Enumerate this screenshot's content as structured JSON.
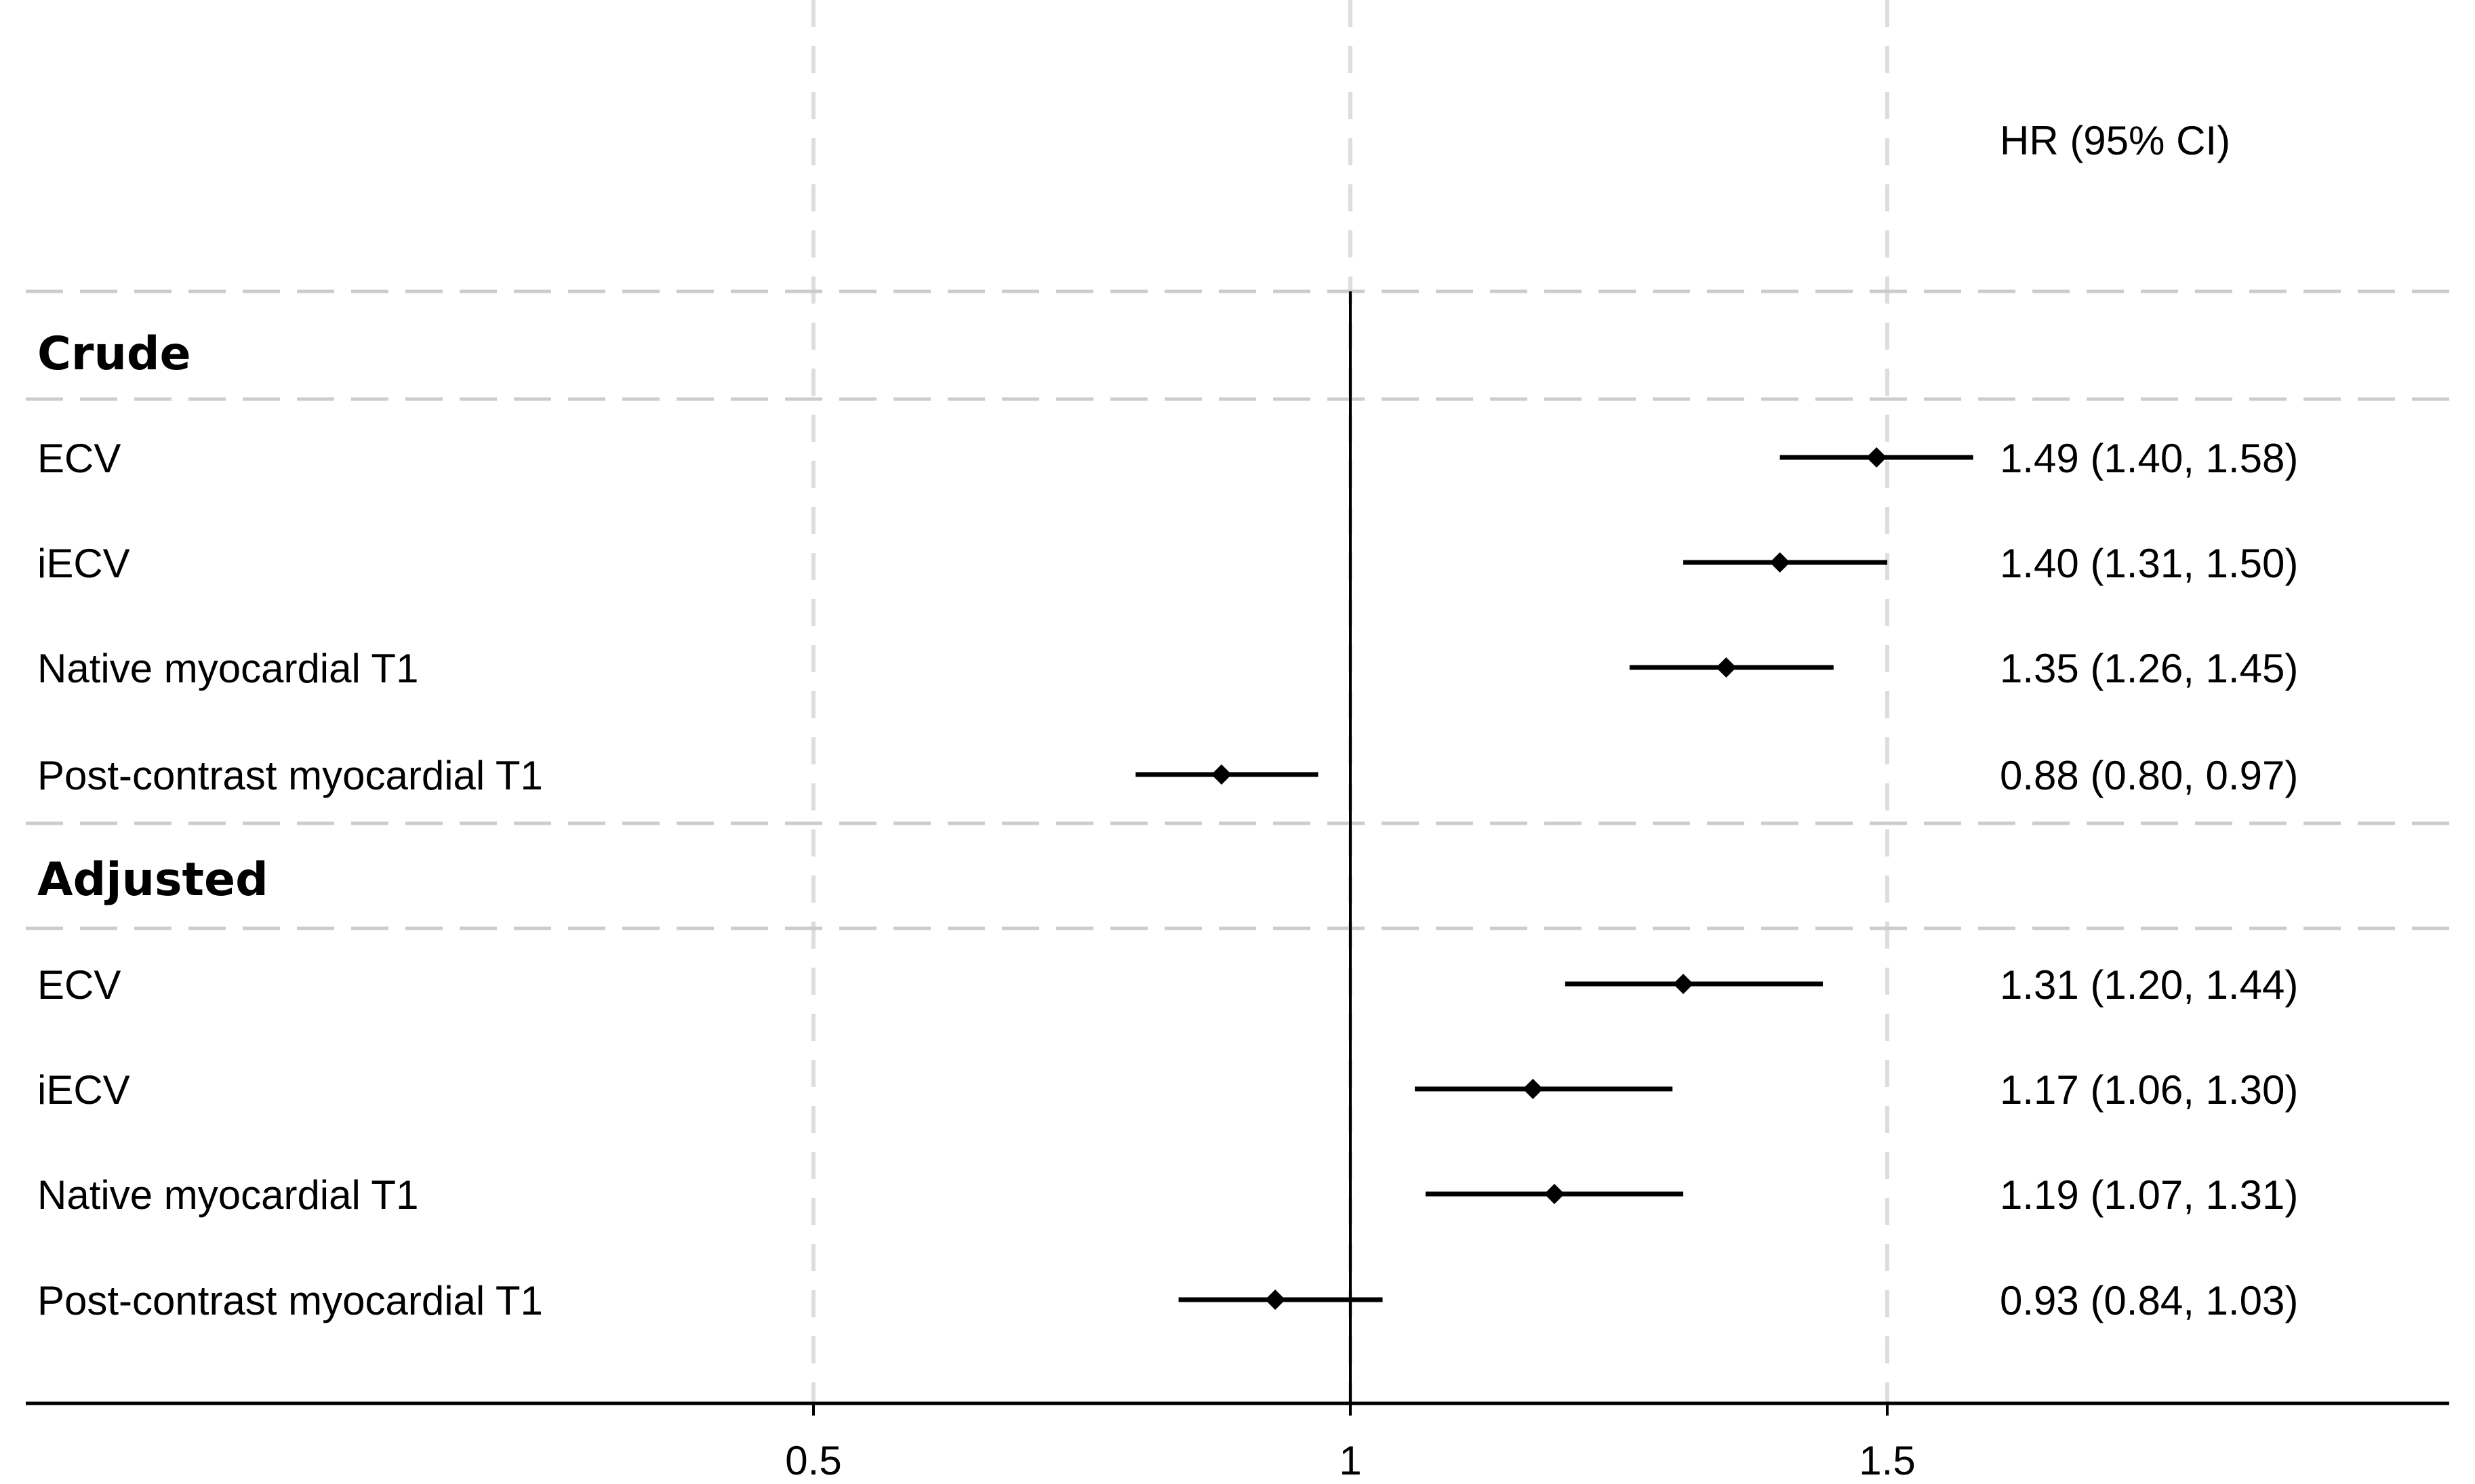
{
  "chart_data": {
    "type": "forest",
    "title": "",
    "xlabel": "",
    "ylabel": "",
    "x_ticks": [
      0.5,
      1,
      1.5
    ],
    "x_tick_labels": [
      "0.5",
      "1",
      "1.5"
    ],
    "xlim": [
      0.23,
      2.5
    ],
    "reference_line": 1,
    "estimate_header": "HR (95% CI)",
    "grid": "vertical dashed at ticks",
    "colors": {
      "marker": "#000000",
      "grid": "#dddddd",
      "separator": "#cccccc",
      "text": "#000000"
    },
    "groups": [
      {
        "label": "Crude",
        "rows": [
          {
            "label": "ECV",
            "hr": 1.49,
            "lo": 1.4,
            "hi": 1.58,
            "text": "1.49 (1.40, 1.58)"
          },
          {
            "label": "iECV",
            "hr": 1.4,
            "lo": 1.31,
            "hi": 1.5,
            "text": "1.40 (1.31, 1.50)"
          },
          {
            "label": "Native myocardial T1",
            "hr": 1.35,
            "lo": 1.26,
            "hi": 1.45,
            "text": "1.35 (1.26, 1.45)"
          },
          {
            "label": "Post-contrast myocardial T1",
            "hr": 0.88,
            "lo": 0.8,
            "hi": 0.97,
            "text": "0.88 (0.80, 0.97)"
          }
        ]
      },
      {
        "label": "Adjusted",
        "rows": [
          {
            "label": "ECV",
            "hr": 1.31,
            "lo": 1.2,
            "hi": 1.44,
            "text": "1.31 (1.20, 1.44)"
          },
          {
            "label": "iECV",
            "hr": 1.17,
            "lo": 1.06,
            "hi": 1.3,
            "text": "1.17 (1.06, 1.30)"
          },
          {
            "label": "Native myocardial T1",
            "hr": 1.19,
            "lo": 1.07,
            "hi": 1.31,
            "text": "1.19 (1.07, 1.31)"
          },
          {
            "label": "Post-contrast myocardial T1",
            "hr": 0.93,
            "lo": 0.84,
            "hi": 1.03,
            "text": "0.93 (0.84, 1.03)"
          }
        ]
      }
    ]
  }
}
